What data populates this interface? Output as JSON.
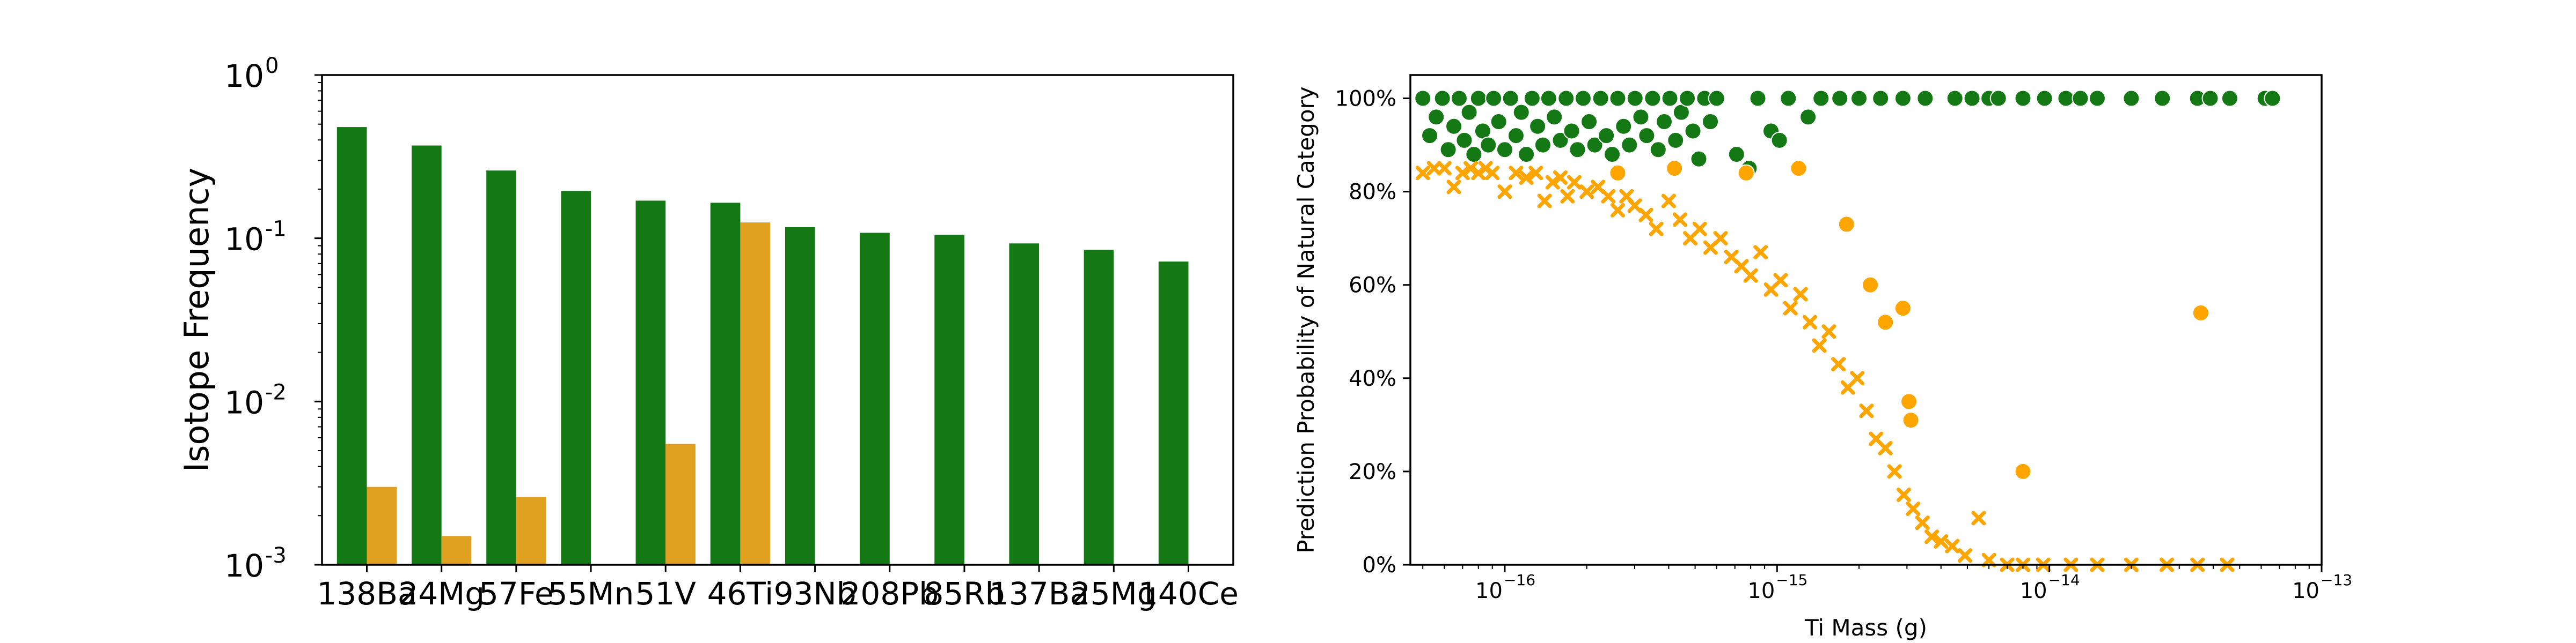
{
  "colors": {
    "green": "#147814",
    "orange": "#E0A020",
    "scatter_orange": "#FFA500",
    "scatter_green": "#0F7A0F"
  },
  "chart_data": [
    {
      "type": "bar",
      "title": "",
      "xlabel": "",
      "ylabel": "Isotope Frequency",
      "yscale": "log",
      "ylim": [
        0.001,
        1.0
      ],
      "ytick_labels": [
        "10",
        "10",
        "10",
        "10"
      ],
      "ytick_exponents": [
        "-3",
        "-2",
        "-1",
        "0"
      ],
      "ytick_values": [
        0.001,
        0.01,
        0.1,
        1.0
      ],
      "categories": [
        "138Ba",
        "24Mg",
        "57Fe",
        "55Mn",
        "51V",
        "46Ti",
        "93Nb",
        "208Pb",
        "85Rb",
        "137Ba",
        "25Mg",
        "140Ce"
      ],
      "series": [
        {
          "values": [
            0.48,
            0.37,
            0.26,
            0.195,
            0.17,
            0.165,
            0.117,
            0.108,
            0.105,
            0.093,
            0.085,
            0.072
          ]
        },
        {
          "values": [
            0.003,
            0.0015,
            0.0026,
            null,
            0.0055,
            0.125,
            null,
            null,
            null,
            null,
            null,
            null
          ]
        }
      ],
      "grid": false,
      "legend": "none"
    },
    {
      "type": "scatter",
      "title": "",
      "xlabel": "Ti Mass (g)",
      "ylabel": "Prediction Probability of Natural Category",
      "xscale": "log",
      "xlim": [
        4.5e-17,
        1e-13
      ],
      "ylim": [
        0,
        1.05
      ],
      "xtick_base": "10",
      "xtick_exponents": [
        "−16",
        "−15",
        "−14",
        "−13"
      ],
      "xtick_values": [
        1e-16,
        1e-15,
        1e-14,
        1e-13
      ],
      "ytick_labels": [
        "0%",
        "20%",
        "40%",
        "60%",
        "80%",
        "100%"
      ],
      "ytick_values": [
        0,
        0.2,
        0.4,
        0.6,
        0.8,
        1.0
      ],
      "series": [
        {
          "marker": "circle",
          "color": "green",
          "points": [
            [
              5e-17,
              1.0
            ],
            [
              5.3e-17,
              0.92
            ],
            [
              5.6e-17,
              0.96
            ],
            [
              5.9e-17,
              1.0
            ],
            [
              6.2e-17,
              0.89
            ],
            [
              6.5e-17,
              0.94
            ],
            [
              6.8e-17,
              1.0
            ],
            [
              7.1e-17,
              0.91
            ],
            [
              7.4e-17,
              0.97
            ],
            [
              7.7e-17,
              0.88
            ],
            [
              8e-17,
              1.0
            ],
            [
              8.3e-17,
              0.93
            ],
            [
              8.7e-17,
              0.9
            ],
            [
              9.1e-17,
              1.0
            ],
            [
              9.5e-17,
              0.95
            ],
            [
              1e-16,
              0.89
            ],
            [
              1.05e-16,
              1.0
            ],
            [
              1.1e-16,
              0.92
            ],
            [
              1.15e-16,
              0.97
            ],
            [
              1.2e-16,
              0.88
            ],
            [
              1.26e-16,
              1.0
            ],
            [
              1.32e-16,
              0.94
            ],
            [
              1.38e-16,
              0.9
            ],
            [
              1.45e-16,
              1.0
            ],
            [
              1.52e-16,
              0.96
            ],
            [
              1.6e-16,
              0.91
            ],
            [
              1.68e-16,
              1.0
            ],
            [
              1.76e-16,
              0.93
            ],
            [
              1.85e-16,
              0.89
            ],
            [
              1.94e-16,
              1.0
            ],
            [
              2.04e-16,
              0.95
            ],
            [
              2.14e-16,
              0.9
            ],
            [
              2.25e-16,
              1.0
            ],
            [
              2.36e-16,
              0.92
            ],
            [
              2.48e-16,
              0.88
            ],
            [
              2.6e-16,
              1.0
            ],
            [
              2.73e-16,
              0.94
            ],
            [
              2.87e-16,
              0.9
            ],
            [
              3.01e-16,
              1.0
            ],
            [
              3.16e-16,
              0.96
            ],
            [
              3.32e-16,
              0.92
            ],
            [
              3.49e-16,
              1.0
            ],
            [
              3.66e-16,
              0.89
            ],
            [
              3.85e-16,
              0.95
            ],
            [
              4.04e-16,
              1.0
            ],
            [
              4.24e-16,
              0.91
            ],
            [
              4.45e-16,
              0.97
            ],
            [
              4.68e-16,
              1.0
            ],
            [
              4.91e-16,
              0.93
            ],
            [
              5.16e-16,
              0.87
            ],
            [
              5.42e-16,
              1.0
            ],
            [
              5.69e-16,
              0.95
            ],
            [
              6e-16,
              1.0
            ],
            [
              7.1e-16,
              0.88
            ],
            [
              7.9e-16,
              0.85
            ],
            [
              8.5e-16,
              1.0
            ],
            [
              9.5e-16,
              0.93
            ],
            [
              1.02e-15,
              0.91
            ],
            [
              1.1e-15,
              1.0
            ],
            [
              1.3e-15,
              0.96
            ],
            [
              1.45e-15,
              1.0
            ],
            [
              1.7e-15,
              1.0
            ],
            [
              2e-15,
              1.0
            ],
            [
              2.4e-15,
              1.0
            ],
            [
              2.9e-15,
              1.0
            ],
            [
              3.5e-15,
              1.0
            ],
            [
              4.5e-15,
              1.0
            ],
            [
              5.2e-15,
              1.0
            ],
            [
              6e-15,
              1.0
            ],
            [
              6.5e-15,
              1.0
            ],
            [
              8e-15,
              1.0
            ],
            [
              9.6e-15,
              1.0
            ],
            [
              1.15e-14,
              1.0
            ],
            [
              1.3e-14,
              1.0
            ],
            [
              1.5e-14,
              1.0
            ],
            [
              2e-14,
              1.0
            ],
            [
              2.6e-14,
              1.0
            ],
            [
              3.5e-14,
              1.0
            ],
            [
              3.9e-14,
              1.0
            ],
            [
              4.6e-14,
              1.0
            ],
            [
              6.2e-14,
              1.0
            ],
            [
              6.6e-14,
              1.0
            ]
          ]
        },
        {
          "marker": "circle",
          "color": "scatter_orange",
          "points": [
            [
              2.6e-16,
              0.84
            ],
            [
              4.2e-16,
              0.85
            ],
            [
              7.7e-16,
              0.84
            ],
            [
              1.2e-15,
              0.85
            ],
            [
              1.8e-15,
              0.73
            ],
            [
              2.2e-15,
              0.6
            ],
            [
              2.5e-15,
              0.52
            ],
            [
              2.9e-15,
              0.55
            ],
            [
              3.05e-15,
              0.35
            ],
            [
              3.1e-15,
              0.31
            ],
            [
              8e-15,
              0.2
            ],
            [
              3.6e-14,
              0.54
            ]
          ]
        },
        {
          "marker": "x",
          "color": "scatter_orange",
          "points": [
            [
              5e-17,
              0.84
            ],
            [
              5.5e-17,
              0.85
            ],
            [
              6e-17,
              0.85
            ],
            [
              6.5e-17,
              0.81
            ],
            [
              7e-17,
              0.84
            ],
            [
              7.5e-17,
              0.85
            ],
            [
              8e-17,
              0.84
            ],
            [
              8.5e-17,
              0.85
            ],
            [
              9e-17,
              0.84
            ],
            [
              1e-16,
              0.8
            ],
            [
              1.1e-16,
              0.84
            ],
            [
              1.2e-16,
              0.83
            ],
            [
              1.3e-16,
              0.84
            ],
            [
              1.4e-16,
              0.78
            ],
            [
              1.5e-16,
              0.82
            ],
            [
              1.6e-16,
              0.83
            ],
            [
              1.7e-16,
              0.79
            ],
            [
              1.8e-16,
              0.82
            ],
            [
              2e-16,
              0.8
            ],
            [
              2.2e-16,
              0.81
            ],
            [
              2.4e-16,
              0.79
            ],
            [
              2.6e-16,
              0.76
            ],
            [
              2.8e-16,
              0.79
            ],
            [
              3e-16,
              0.77
            ],
            [
              3.3e-16,
              0.75
            ],
            [
              3.6e-16,
              0.72
            ],
            [
              4e-16,
              0.78
            ],
            [
              4.4e-16,
              0.74
            ],
            [
              4.8e-16,
              0.7
            ],
            [
              5.2e-16,
              0.72
            ],
            [
              5.7e-16,
              0.68
            ],
            [
              6.2e-16,
              0.7
            ],
            [
              6.8e-16,
              0.66
            ],
            [
              7.4e-16,
              0.64
            ],
            [
              8e-16,
              0.62
            ],
            [
              8.7e-16,
              0.67
            ],
            [
              9.5e-16,
              0.59
            ],
            [
              1.03e-15,
              0.61
            ],
            [
              1.12e-15,
              0.55
            ],
            [
              1.22e-15,
              0.58
            ],
            [
              1.32e-15,
              0.52
            ],
            [
              1.43e-15,
              0.47
            ],
            [
              1.55e-15,
              0.5
            ],
            [
              1.68e-15,
              0.43
            ],
            [
              1.82e-15,
              0.38
            ],
            [
              1.97e-15,
              0.4
            ],
            [
              2.13e-15,
              0.33
            ],
            [
              2.31e-15,
              0.27
            ],
            [
              2.5e-15,
              0.25
            ],
            [
              2.7e-15,
              0.2
            ],
            [
              2.92e-15,
              0.15
            ],
            [
              3.16e-15,
              0.12
            ],
            [
              3.42e-15,
              0.09
            ],
            [
              3.7e-15,
              0.06
            ],
            [
              4e-15,
              0.05
            ],
            [
              4.4e-15,
              0.04
            ],
            [
              4.9e-15,
              0.02
            ],
            [
              5.5e-15,
              0.1
            ],
            [
              6e-15,
              0.01
            ],
            [
              7e-15,
              0.0
            ],
            [
              8e-15,
              0.0
            ],
            [
              9.5e-15,
              0.0
            ],
            [
              1.2e-14,
              0.0
            ],
            [
              1.5e-14,
              0.0
            ],
            [
              2e-14,
              0.0
            ],
            [
              2.7e-14,
              0.0
            ],
            [
              3.5e-14,
              0.0
            ],
            [
              4.5e-14,
              0.0
            ]
          ]
        }
      ],
      "grid": false,
      "legend": "none"
    }
  ]
}
